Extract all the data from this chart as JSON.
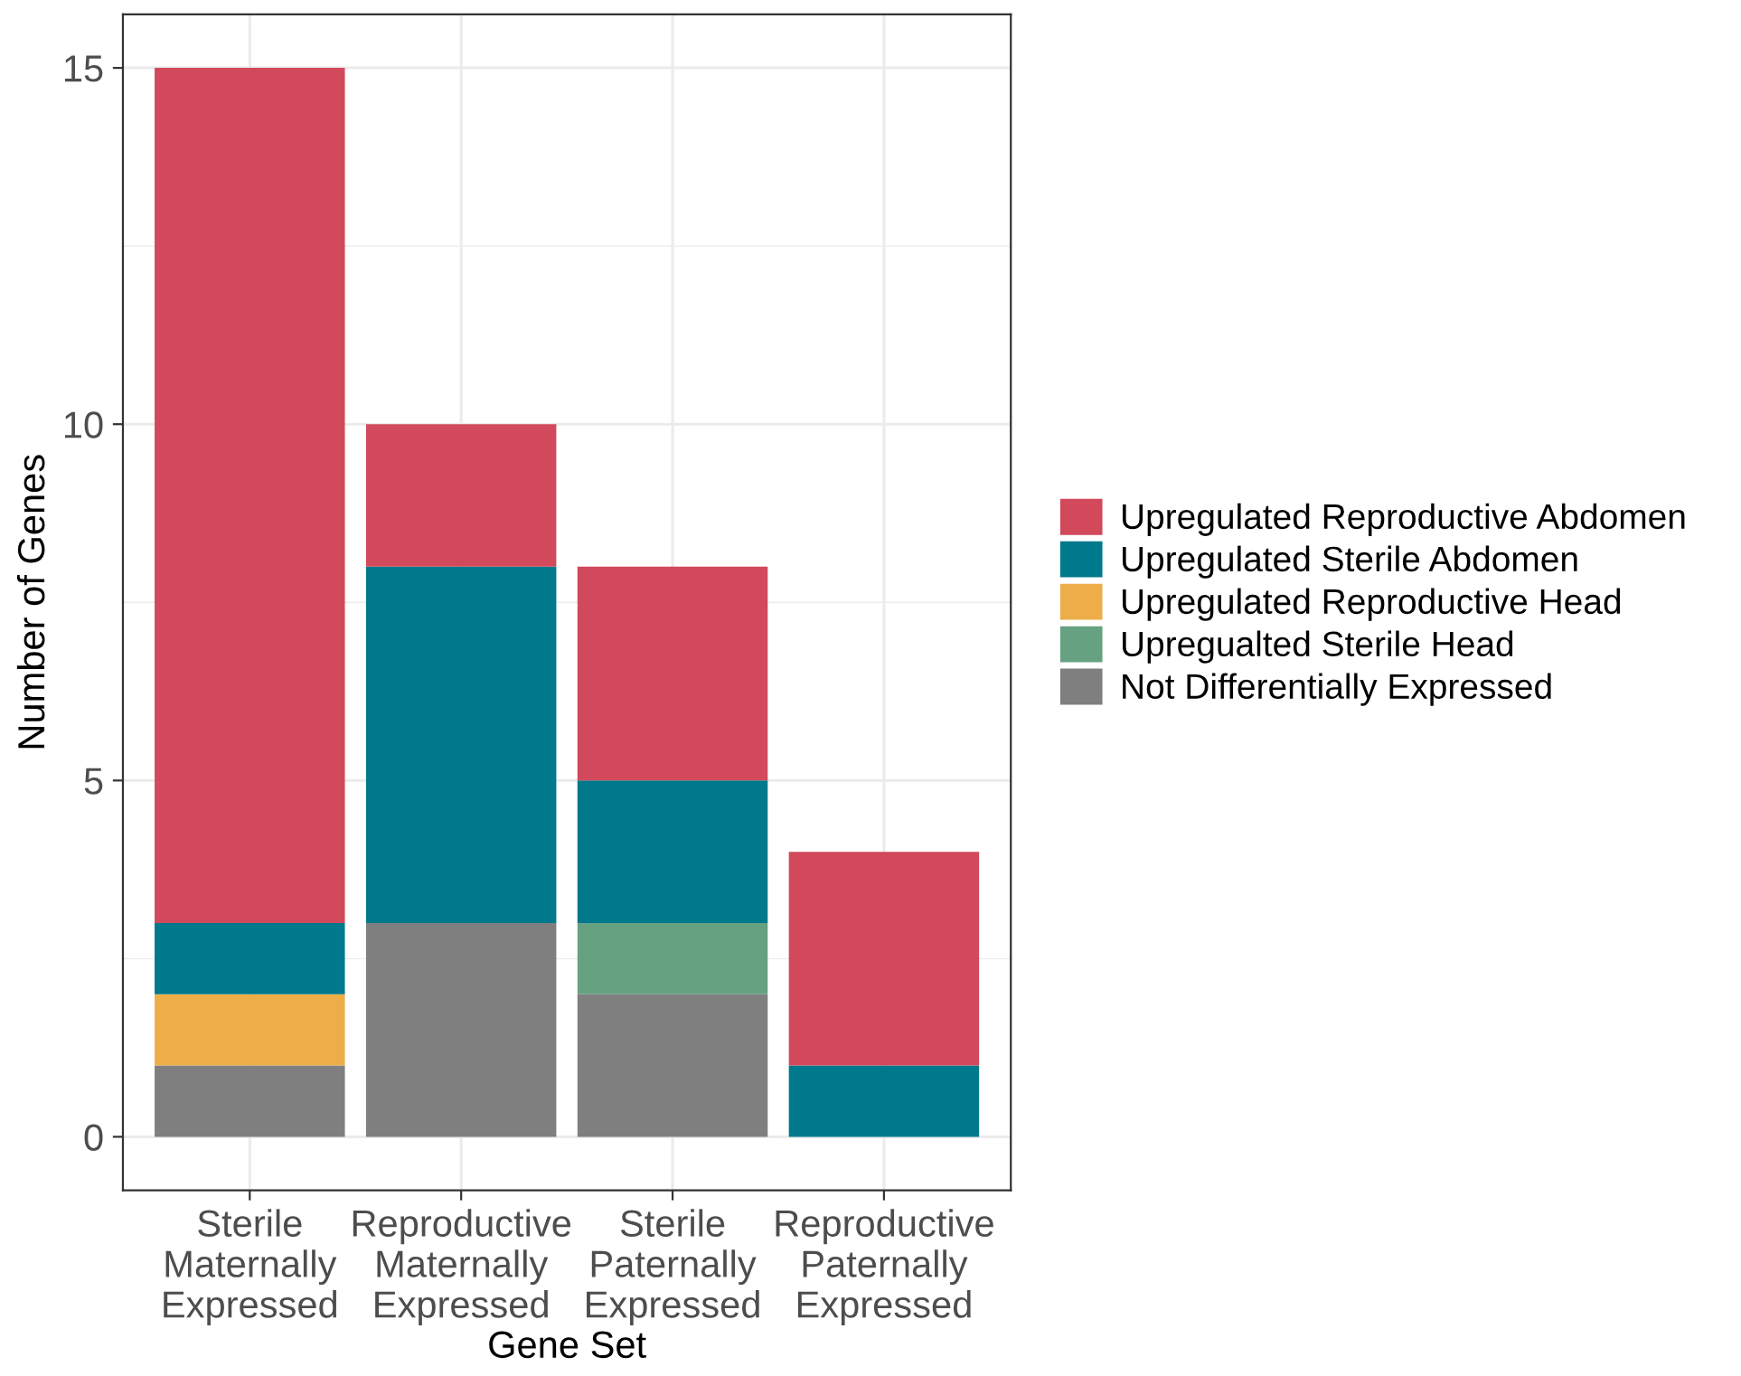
{
  "chart_data": {
    "type": "bar",
    "stacked": true,
    "xlabel": "Gene Set",
    "ylabel": "Number of Genes",
    "categories": [
      "Sterile\nMaternally\nExpressed",
      "Reproductive\nMaternally\nExpressed",
      "Sterile\nPaternally\nExpressed",
      "Reproductive\nPaternally\nExpressed"
    ],
    "series": [
      {
        "name": "Not Differentially Expressed",
        "color": "#7f7f7f",
        "values": [
          1,
          3,
          2,
          0
        ]
      },
      {
        "name": "Upregualted Sterile Head",
        "color": "#66a182",
        "values": [
          0,
          0,
          1,
          0
        ]
      },
      {
        "name": "Upregulated Reproductive Head",
        "color": "#edae49",
        "values": [
          1,
          0,
          0,
          0
        ]
      },
      {
        "name": "Upregulated Sterile Abdomen",
        "color": "#00798c",
        "values": [
          1,
          5,
          2,
          1
        ]
      },
      {
        "name": "Upregulated Reproductive Abdomen",
        "color": "#d1495b",
        "values": [
          12,
          2,
          3,
          3
        ]
      }
    ],
    "ylim": [
      -0.75,
      15.75
    ],
    "yticks": [
      0,
      5,
      10,
      15
    ],
    "grid": true,
    "legend": "right"
  }
}
